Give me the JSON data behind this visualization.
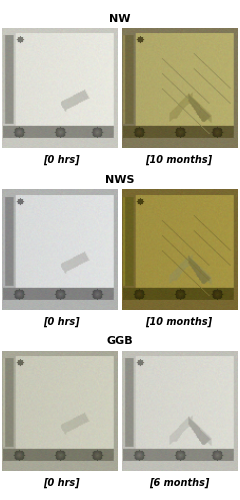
{
  "title_NW": "NW",
  "title_NWS": "NWS",
  "title_GGB": "GGB",
  "label_row1_left": "[0 hrs]",
  "label_row1_right": "[10 months]",
  "label_row2_left": "[0 hrs]",
  "label_row2_right": "[10 months]",
  "label_row3_left": "[0 hrs]",
  "label_row3_right": "[6 months]",
  "fig_width": 2.4,
  "fig_height": 5.0,
  "dpi": 100,
  "background_color": "#ffffff",
  "title_fontsize": 8,
  "label_fontsize": 7
}
